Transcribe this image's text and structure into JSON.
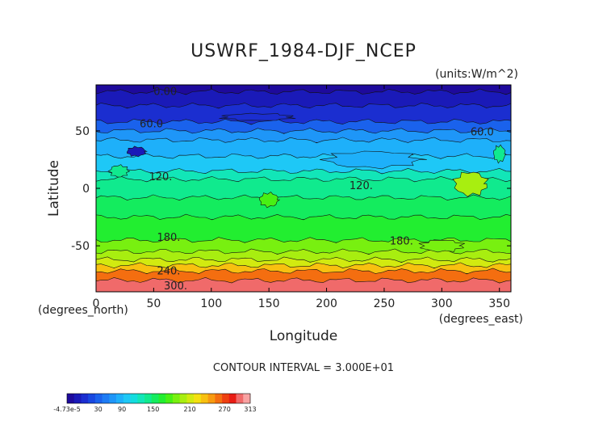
{
  "chart_data": {
    "type": "heatmap",
    "title": "USWRF_1984-DJF_NCEP",
    "units_label": "(units:W/m^2)",
    "xlabel": "Longitude",
    "ylabel": "Latitude",
    "x_unit_label": "(degrees_east)",
    "y_unit_label": "(degrees_north)",
    "xlim": [
      0,
      360
    ],
    "ylim": [
      -90,
      90
    ],
    "x_ticks": [
      0,
      50,
      100,
      150,
      200,
      250,
      300,
      350
    ],
    "y_ticks": [
      50,
      0,
      -50
    ],
    "x_tick_labels": [
      "0",
      "50",
      "100",
      "150",
      "200",
      "250",
      "300",
      "350"
    ],
    "y_tick_labels": [
      "50",
      "0",
      "-50"
    ],
    "contour_interval_label": "CONTOUR INTERVAL = 3.000E+01",
    "contour_labels": [
      {
        "text": "0.00",
        "lon": 60,
        "lat": 84
      },
      {
        "text": "60.0",
        "lon": 48,
        "lat": 56
      },
      {
        "text": "60.0",
        "lon": 335,
        "lat": 49
      },
      {
        "text": "120.",
        "lon": 56,
        "lat": 10
      },
      {
        "text": "120.",
        "lon": 230,
        "lat": 2
      },
      {
        "text": "180.",
        "lon": 63,
        "lat": -43
      },
      {
        "text": "180.",
        "lon": 265,
        "lat": -46
      },
      {
        "text": "240.",
        "lon": 63,
        "lat": -72
      },
      {
        "text": "300.",
        "lon": 69,
        "lat": -85
      }
    ],
    "bands": [
      {
        "lat_top": 90,
        "lat_bottom": 84,
        "value": 0
      },
      {
        "lat_top": 84,
        "lat_bottom": 72,
        "value": 20
      },
      {
        "lat_top": 72,
        "lat_bottom": 58,
        "value": 35
      },
      {
        "lat_top": 58,
        "lat_bottom": 50,
        "value": 60
      },
      {
        "lat_top": 50,
        "lat_bottom": 42,
        "value": 75
      },
      {
        "lat_top": 42,
        "lat_bottom": 28,
        "value": 95
      },
      {
        "lat_top": 28,
        "lat_bottom": 15,
        "value": 110
      },
      {
        "lat_top": 15,
        "lat_bottom": 8,
        "value": 125
      },
      {
        "lat_top": 8,
        "lat_bottom": -8,
        "value": 140
      },
      {
        "lat_top": -8,
        "lat_bottom": -25,
        "value": 155
      },
      {
        "lat_top": -25,
        "lat_bottom": -45,
        "value": 170
      },
      {
        "lat_top": -45,
        "lat_bottom": -55,
        "value": 190
      },
      {
        "lat_top": -55,
        "lat_bottom": -62,
        "value": 205
      },
      {
        "lat_top": -62,
        "lat_bottom": -67,
        "value": 220
      },
      {
        "lat_top": -67,
        "lat_bottom": -72,
        "value": 240
      },
      {
        "lat_top": -72,
        "lat_bottom": -80,
        "value": 270
      },
      {
        "lat_top": -80,
        "lat_bottom": -90,
        "value": 310
      }
    ],
    "patches": [
      {
        "lon": 325,
        "lat": 4,
        "rx": 14,
        "ry": 10,
        "value": 200
      },
      {
        "lon": 150,
        "lat": -10,
        "rx": 8,
        "ry": 6,
        "value": 175
      },
      {
        "lon": 20,
        "lat": 15,
        "rx": 8,
        "ry": 5,
        "value": 140
      },
      {
        "lon": 240,
        "lat": 25,
        "rx": 40,
        "ry": 7,
        "value": 90
      },
      {
        "lon": 35,
        "lat": 32,
        "rx": 8,
        "ry": 4,
        "value": 15
      },
      {
        "lon": 140,
        "lat": 62,
        "rx": 30,
        "ry": 3,
        "value": 30
      },
      {
        "lon": 300,
        "lat": -50,
        "rx": 18,
        "ry": 5,
        "value": 195
      },
      {
        "lon": 350,
        "lat": 30,
        "rx": 5,
        "ry": 7,
        "value": 140
      }
    ],
    "colorbar": {
      "ticks": [
        "-4.73e-5",
        "30",
        "90",
        "150",
        "210",
        "270",
        "313"
      ],
      "colors": [
        "#1e0a9c",
        "#1a1ab8",
        "#1b2ed0",
        "#1848e0",
        "#1a62ec",
        "#1e7cf4",
        "#1e96f8",
        "#1eb0fa",
        "#1ec8f6",
        "#14dcde",
        "#12e6b8",
        "#10ea8e",
        "#14ec5e",
        "#22ee30",
        "#48f014",
        "#78f010",
        "#a8ee10",
        "#d2ea10",
        "#f4e010",
        "#f8c010",
        "#f89a10",
        "#f46e10",
        "#ee4010",
        "#e81c14",
        "#f06a6a",
        "#f8a2a2"
      ]
    }
  }
}
